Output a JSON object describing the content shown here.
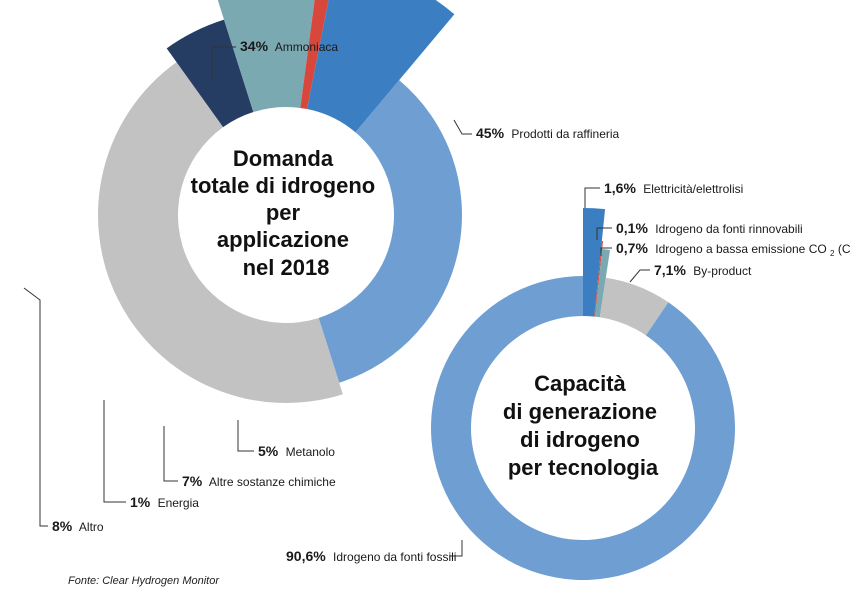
{
  "chart_data": [
    {
      "type": "pie",
      "title_lines": [
        "Domanda",
        "totale di idrogeno",
        "per",
        "applicazione",
        "nel 2018"
      ],
      "slices": [
        {
          "pct_label": "34%",
          "label": "Ammoniaca",
          "value": 34,
          "color": "#6f9fd2"
        },
        {
          "pct_label": "45%",
          "label": "Prodotti da raffineria",
          "value": 45,
          "color": "#c2c2c2"
        },
        {
          "pct_label": "5%",
          "label": "Metanolo",
          "value": 5,
          "color": "#263d63"
        },
        {
          "pct_label": "7%",
          "label": "Altre sostanze chimiche",
          "value": 7,
          "color": "#7aa9b1"
        },
        {
          "pct_label": "1%",
          "label": "Energia",
          "value": 1,
          "color": "#d8473c"
        },
        {
          "pct_label": "8%",
          "label": "Altro",
          "value": 8,
          "color": "#3b7fc2"
        }
      ]
    },
    {
      "type": "pie",
      "title_lines": [
        "Capacità",
        "di generazione",
        "di idrogeno",
        "per tecnologia"
      ],
      "slices": [
        {
          "pct_label": "1,6%",
          "label": "Elettricità/elettrolisi",
          "value": 1.6,
          "color": "#3b7fc2"
        },
        {
          "pct_label": "0,1%",
          "label": "Idrogeno da fonti rinnovabili",
          "value": 0.1,
          "color": "#d8473c"
        },
        {
          "pct_label": "0,7%",
          "label": "Idrogeno a bassa emissione CO",
          "label_sub": "2",
          "label_suffix": " (CCS)",
          "value": 0.7,
          "color": "#7aa9b1"
        },
        {
          "pct_label": "7,1%",
          "label": "By-product",
          "value": 7.1,
          "color": "#c2c2c2"
        },
        {
          "pct_label": "90,6%",
          "label": "Idrogeno da fonti fossili",
          "value": 90.6,
          "color": "#6f9fd2"
        }
      ]
    }
  ],
  "source": "Fonte: Clear Hydrogen Monitor"
}
